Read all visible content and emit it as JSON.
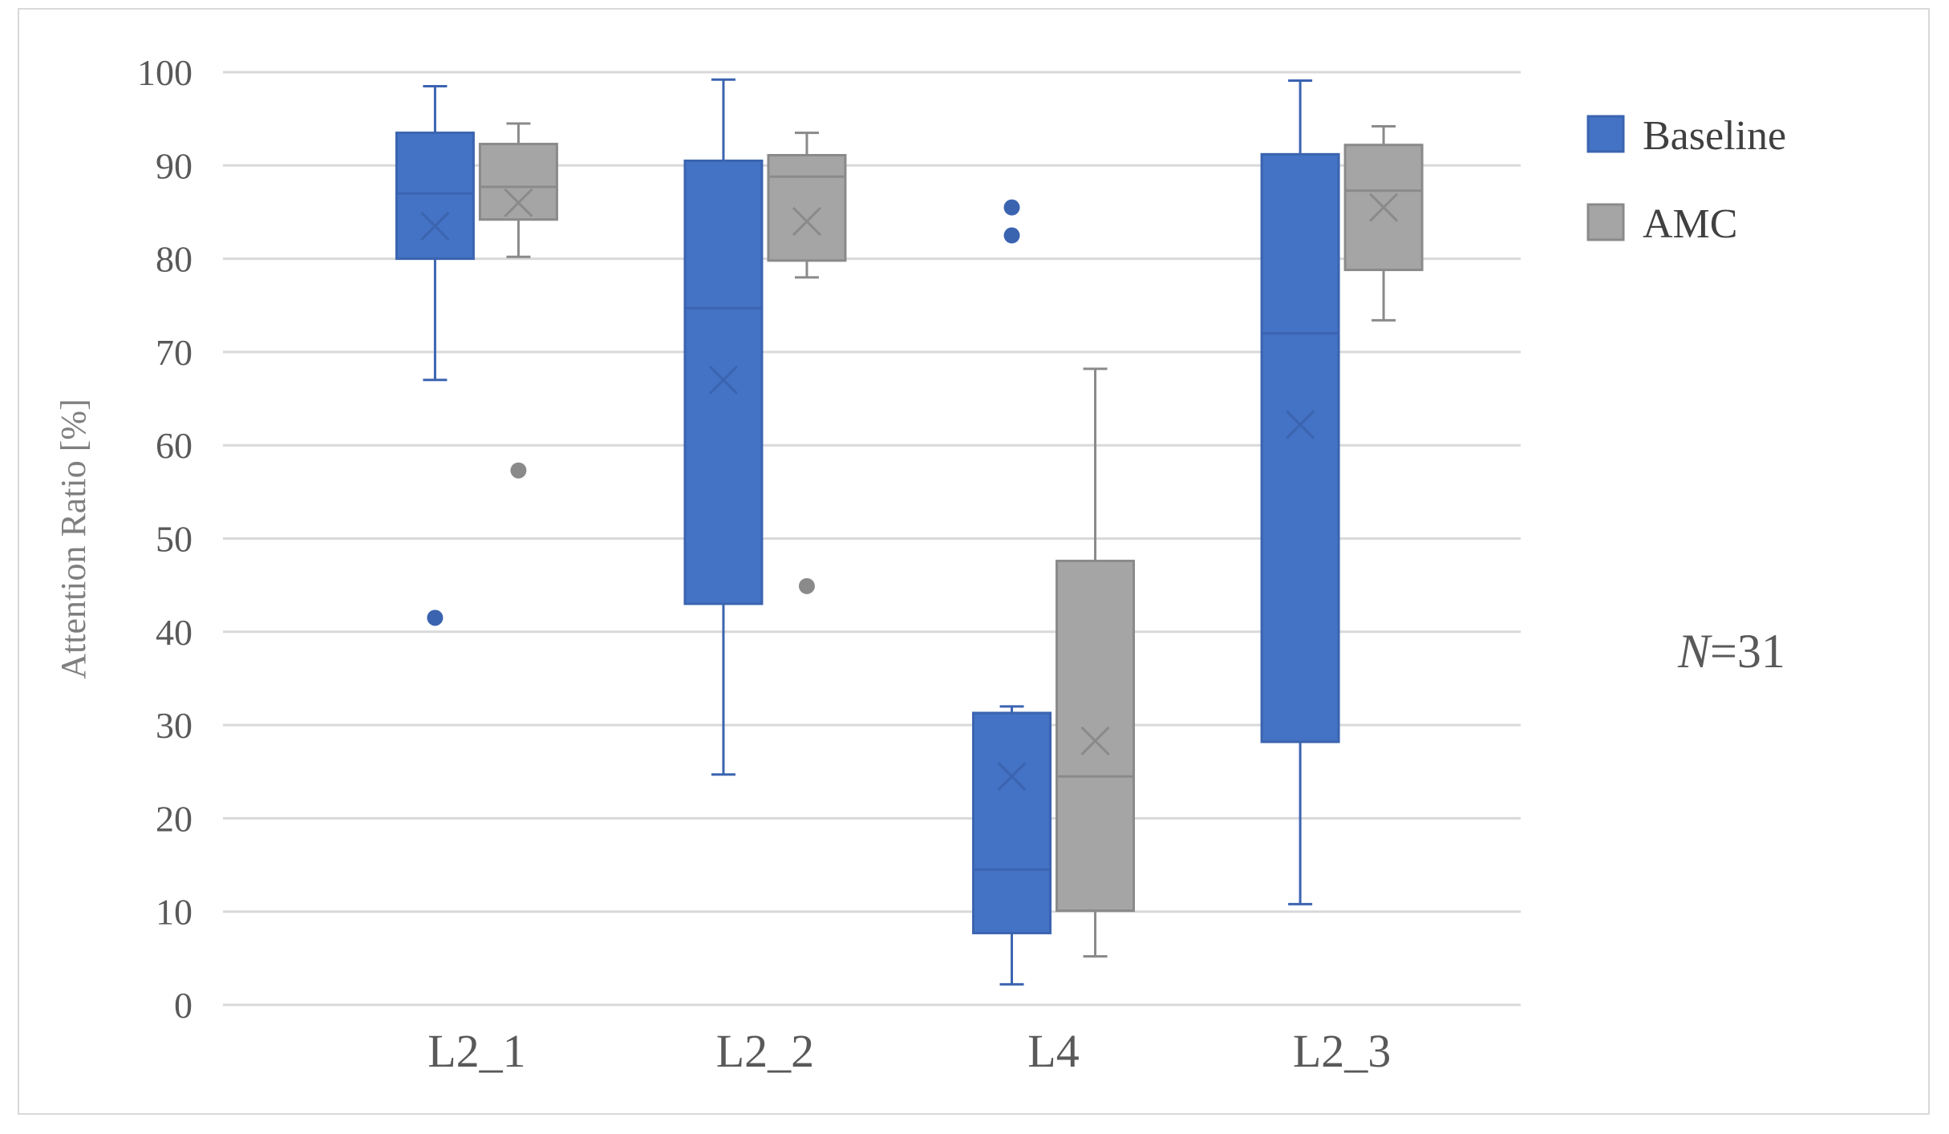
{
  "chart_data": {
    "type": "box",
    "ylabel": "Attention Ratio [%]",
    "ylim": [
      0,
      100
    ],
    "yticks": [
      0,
      10,
      20,
      30,
      40,
      50,
      60,
      70,
      80,
      90,
      100
    ],
    "grid": true,
    "legend_position": "right",
    "categories": [
      "L2_1",
      "L2_2",
      "L4",
      "L2_3"
    ],
    "annotation": {
      "italic": "N",
      "rest": "=31"
    },
    "series": [
      {
        "name": "Baseline",
        "color": "#4472c4",
        "boxes": [
          {
            "min": 67,
            "q1": 80,
            "median": 87,
            "q3": 93.5,
            "max": 98.5,
            "mean": 83.5,
            "outliers": [
              41.5
            ]
          },
          {
            "min": 24.7,
            "q1": 43,
            "median": 74.7,
            "q3": 90.5,
            "max": 99.2,
            "mean": 67,
            "outliers": []
          },
          {
            "min": 2.2,
            "q1": 7.7,
            "median": 14.5,
            "q3": 31.3,
            "max": 32,
            "mean": 24.5,
            "outliers": [
              85.5,
              82.5
            ]
          },
          {
            "min": 10.8,
            "q1": 28.2,
            "median": 72,
            "q3": 91.2,
            "max": 99.1,
            "mean": 62.2,
            "outliers": []
          }
        ]
      },
      {
        "name": "AMC",
        "color": "#a5a5a5",
        "boxes": [
          {
            "min": 80.2,
            "q1": 84.2,
            "median": 87.7,
            "q3": 92.3,
            "max": 94.5,
            "mean": 86,
            "outliers": [
              57.3
            ]
          },
          {
            "min": 78,
            "q1": 79.8,
            "median": 88.8,
            "q3": 91.1,
            "max": 93.5,
            "mean": 84,
            "outliers": [
              44.9
            ]
          },
          {
            "min": 5.2,
            "q1": 10.1,
            "median": 24.5,
            "q3": 47.6,
            "max": 68.2,
            "mean": 28.3,
            "outliers": []
          },
          {
            "min": 73.4,
            "q1": 78.8,
            "median": 87.3,
            "q3": 92.2,
            "max": 94.2,
            "mean": 85.5,
            "outliers": []
          }
        ]
      }
    ]
  }
}
